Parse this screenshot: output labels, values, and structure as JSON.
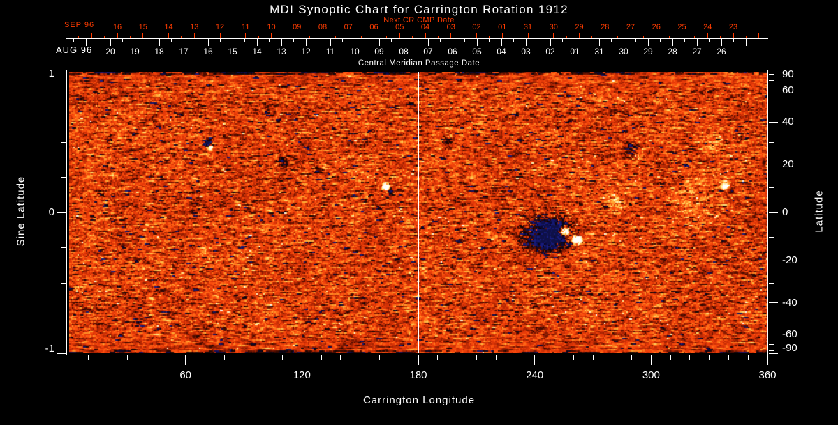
{
  "title": "MDI Synoptic Chart for Carrington Rotation 1912",
  "colors": {
    "background": "#000000",
    "foreground": "#ffffff",
    "accent_red": "#ff3c00",
    "quiet_sun_orange": "#e8380a",
    "negative_polarity_dark": "#0a0404",
    "negative_polarity_blue": "#1a1e87",
    "positive_polarity_yellow": "#ffdc6e",
    "positive_polarity_white": "#ffffff"
  },
  "next_cr_axis": {
    "axis_label": "Next CR CMP Date",
    "month_label": "SEP 96",
    "days": [
      "16",
      "15",
      "14",
      "13",
      "12",
      "11",
      "10",
      "09",
      "08",
      "07",
      "06",
      "05",
      "04",
      "03",
      "02",
      "01",
      "31",
      "30",
      "29",
      "28",
      "27",
      "26",
      "25",
      "24",
      "23"
    ]
  },
  "cmp_axis": {
    "title": "Central Meridian Passage Date",
    "month_label": "AUG 96",
    "days": [
      "20",
      "19",
      "18",
      "17",
      "16",
      "15",
      "14",
      "13",
      "12",
      "11",
      "10",
      "09",
      "08",
      "07",
      "06",
      "05",
      "04",
      "03",
      "02",
      "01",
      "31",
      "30",
      "29",
      "28",
      "27",
      "26"
    ]
  },
  "left_axis": {
    "title": "Sine Latitude",
    "tick_values": [
      1,
      0,
      -1
    ],
    "minor_values": [
      0.75,
      0.5,
      0.25,
      -0.25,
      -0.5,
      -0.75
    ]
  },
  "right_axis": {
    "title": "Latitude",
    "tick_values": [
      90,
      60,
      40,
      20,
      0,
      -20,
      -40,
      -60,
      -90
    ],
    "minor_values": [
      80,
      70,
      50,
      30,
      10,
      -10,
      -30,
      -50,
      -70,
      -80
    ]
  },
  "bottom_axis": {
    "title": "Carrington Longitude",
    "tick_values": [
      60,
      120,
      180,
      240,
      300,
      360
    ],
    "minor_step_deg": 10
  },
  "chart_data": {
    "type": "heatmap",
    "title": "MDI Synoptic Chart for Carrington Rotation 1912",
    "xlabel": "Carrington Longitude",
    "ylabel_left": "Sine Latitude",
    "ylabel_right": "Latitude",
    "xlim": [
      0,
      360
    ],
    "ylim_sine": [
      -1,
      1
    ],
    "x_major_ticks": [
      60,
      120,
      180,
      240,
      300,
      360
    ],
    "right_latitude_ticks": [
      90,
      60,
      40,
      20,
      0,
      -20,
      -40,
      -60,
      -90
    ],
    "crosshair": {
      "longitude": 180,
      "sine_latitude": 0
    },
    "colormap": "MDI magnetogram: black/blue = negative polarity, orange = quiet sun, yellow/white = positive polarity",
    "grid": "white crosshair at longitude 180 and equator",
    "active_regions": [
      {
        "lon": 71,
        "sin_lat": 0.5,
        "polarity": "negative",
        "r_lon": 1.6,
        "r_sin": 0.022,
        "amp": -1.9
      },
      {
        "lon": 72.5,
        "sin_lat": 0.465,
        "polarity": "positive",
        "r_lon": 1.1,
        "r_sin": 0.015,
        "amp": 1.6
      },
      {
        "lon": 163,
        "sin_lat": 0.185,
        "polarity": "positive",
        "r_lon": 1.7,
        "r_sin": 0.024,
        "amp": 2.0
      },
      {
        "lon": 165.5,
        "sin_lat": 0.155,
        "polarity": "negative",
        "r_lon": 1.3,
        "r_sin": 0.018,
        "amp": -1.4
      },
      {
        "lon": 247,
        "sin_lat": -0.16,
        "polarity": "negative",
        "r_lon": 9,
        "r_sin": 0.09,
        "amp": -1.35
      },
      {
        "lon": 247,
        "sin_lat": -0.14,
        "polarity": "negative",
        "r_lon": 16,
        "r_sin": 0.16,
        "amp": -0.55,
        "patchy": true
      },
      {
        "lon": 255,
        "sin_lat": -0.13,
        "polarity": "positive",
        "r_lon": 2.2,
        "r_sin": 0.03,
        "amp": 2.4
      },
      {
        "lon": 261.5,
        "sin_lat": -0.19,
        "polarity": "positive",
        "r_lon": 2.0,
        "r_sin": 0.028,
        "amp": 2.6
      },
      {
        "lon": 258,
        "sin_lat": -0.16,
        "polarity": "positive",
        "r_lon": 3.5,
        "r_sin": 0.05,
        "amp": 0.7,
        "patchy": true
      },
      {
        "lon": 282,
        "sin_lat": 0.07,
        "polarity": "positive",
        "r_lon": 5,
        "r_sin": 0.07,
        "amp": 0.4,
        "patchy": true
      },
      {
        "lon": 290,
        "sin_lat": 0.45,
        "polarity": "negative",
        "r_lon": 4.5,
        "r_sin": 0.06,
        "amp": -0.7,
        "patchy": true
      },
      {
        "lon": 293,
        "sin_lat": 0.42,
        "polarity": "positive",
        "r_lon": 3.5,
        "r_sin": 0.05,
        "amp": 0.55,
        "patchy": true
      },
      {
        "lon": 320,
        "sin_lat": 0.1,
        "polarity": "positive",
        "r_lon": 11,
        "r_sin": 0.22,
        "amp": 0.25,
        "patchy": true
      },
      {
        "lon": 330,
        "sin_lat": 0.5,
        "polarity": "positive",
        "r_lon": 6,
        "r_sin": 0.1,
        "amp": 0.3,
        "patchy": true
      },
      {
        "lon": 338,
        "sin_lat": 0.19,
        "polarity": "positive",
        "r_lon": 1.8,
        "r_sin": 0.025,
        "amp": 1.5
      },
      {
        "lon": 341,
        "sin_lat": 0.155,
        "polarity": "negative",
        "r_lon": 1.4,
        "r_sin": 0.02,
        "amp": -1.0
      },
      {
        "lon": 345,
        "sin_lat": 0.55,
        "polarity": "negative",
        "r_lon": 3,
        "r_sin": 0.05,
        "amp": -0.35,
        "patchy": true
      },
      {
        "lon": 110,
        "sin_lat": 0.36,
        "polarity": "negative",
        "r_lon": 3,
        "r_sin": 0.04,
        "amp": -0.5,
        "patchy": true
      },
      {
        "lon": 128,
        "sin_lat": 0.3,
        "polarity": "negative",
        "r_lon": 2.5,
        "r_sin": 0.035,
        "amp": -0.4,
        "patchy": true
      },
      {
        "lon": 195,
        "sin_lat": 0.5,
        "polarity": "negative",
        "r_lon": 2.5,
        "r_sin": 0.05,
        "amp": -0.45,
        "patchy": true
      },
      {
        "lon": 223,
        "sin_lat": 0.12,
        "polarity": "negative",
        "r_lon": 2.5,
        "r_sin": 0.04,
        "amp": -0.4,
        "patchy": true
      }
    ]
  }
}
